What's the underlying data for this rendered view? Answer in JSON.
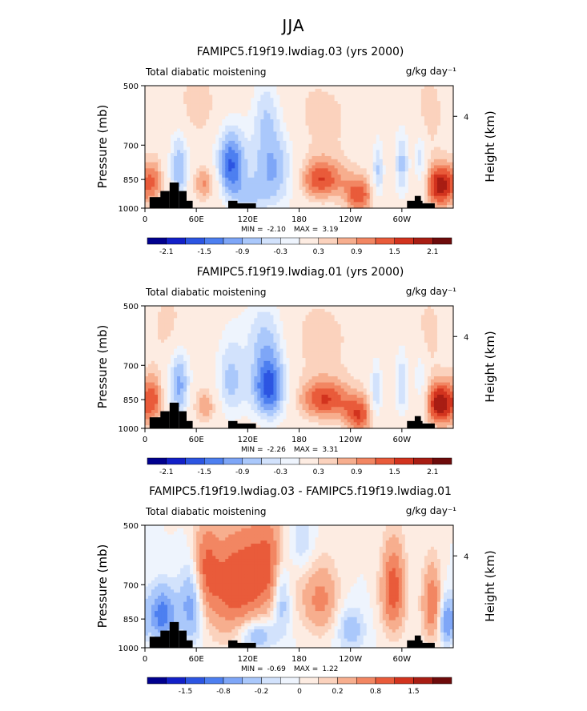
{
  "title": "JJA",
  "colors": {
    "scale": [
      "#00008e",
      "#1220c8",
      "#2c55e2",
      "#4d7ff0",
      "#7ea6f7",
      "#aac8fb",
      "#d2e2fc",
      "#eef4fd",
      "#fdece2",
      "#fbd2bd",
      "#f7ae8e",
      "#f28662",
      "#e95b3a",
      "#d2331e",
      "#a81d13",
      "#6e0b0b"
    ],
    "land": "#000000"
  },
  "chart_data": [
    {
      "type": "heatmap",
      "title": "FAMIPC5.f19f19.lwdiag.03 (yrs 2000)",
      "variable": "Total diabatic moistening",
      "units": "g/kg day⁻¹",
      "ylabel": "Pressure (mb)",
      "y2label": "Height (km)",
      "xticks": [
        "0",
        "60E",
        "120E",
        "180",
        "120W",
        "60W"
      ],
      "yticks": [
        "500",
        "700",
        "850",
        "1000"
      ],
      "y2ticks": [
        "4"
      ],
      "min_label": "MIN =",
      "min": "-2.10",
      "max_label": "MAX =",
      "max": "3.19",
      "colorbar_ticks": [
        "-2.1",
        "-1.5",
        "-0.9",
        "-0.3",
        "0.3",
        "0.9",
        "1.5",
        "2.1"
      ],
      "features": [
        {
          "lon": 100,
          "p": 780,
          "v": -1.8,
          "sl": 12,
          "sp": 110
        },
        {
          "lon": 40,
          "p": 800,
          "v": -1.2,
          "sl": 8,
          "sp": 120
        },
        {
          "lon": 150,
          "p": 800,
          "v": -1.3,
          "sl": 20,
          "sp": 140
        },
        {
          "lon": 142,
          "p": 580,
          "v": -0.7,
          "sl": 12,
          "sp": 90
        },
        {
          "lon": 205,
          "p": 850,
          "v": 1.5,
          "sl": 20,
          "sp": 70
        },
        {
          "lon": 250,
          "p": 930,
          "v": 1.4,
          "sl": 12,
          "sp": 70
        },
        {
          "lon": 345,
          "p": 880,
          "v": 2.0,
          "sl": 12,
          "sp": 80
        },
        {
          "lon": 272,
          "p": 820,
          "v": -1.0,
          "sl": 5,
          "sp": 110
        },
        {
          "lon": 300,
          "p": 780,
          "v": -1.0,
          "sl": 6,
          "sp": 110
        },
        {
          "lon": 322,
          "p": 760,
          "v": -0.8,
          "sl": 5,
          "sp": 110
        },
        {
          "lon": 70,
          "p": 870,
          "v": 1.0,
          "sl": 10,
          "sp": 60
        },
        {
          "lon": 10,
          "p": 860,
          "v": 1.0,
          "sl": 8,
          "sp": 80
        },
        {
          "lon": 120,
          "p": 940,
          "v": -0.6,
          "sl": 15,
          "sp": 60
        },
        {
          "lon": 200,
          "p": 600,
          "v": 0.4,
          "sl": 40,
          "sp": 120
        },
        {
          "lon": 60,
          "p": 560,
          "v": 0.5,
          "sl": 20,
          "sp": 80
        },
        {
          "lon": 330,
          "p": 580,
          "v": 0.6,
          "sl": 12,
          "sp": 80
        }
      ]
    },
    {
      "type": "heatmap",
      "title": "FAMIPC5.f19f19.lwdiag.01 (yrs 2000)",
      "variable": "Total diabatic moistening",
      "units": "g/kg day⁻¹",
      "ylabel": "Pressure (mb)",
      "y2label": "Height (km)",
      "xticks": [
        "0",
        "60E",
        "120E",
        "180",
        "120W",
        "60W"
      ],
      "yticks": [
        "500",
        "700",
        "850",
        "1000"
      ],
      "y2ticks": [
        "4"
      ],
      "min_label": "MIN =",
      "min": "-2.26",
      "max_label": "MAX =",
      "max": "3.31",
      "colorbar_ticks": [
        "-2.1",
        "-1.5",
        "-0.9",
        "-0.3",
        "0.3",
        "0.9",
        "1.5",
        "2.1"
      ],
      "features": [
        {
          "lon": 145,
          "p": 790,
          "v": -2.0,
          "sl": 15,
          "sp": 110
        },
        {
          "lon": 40,
          "p": 780,
          "v": -1.3,
          "sl": 9,
          "sp": 120
        },
        {
          "lon": 100,
          "p": 760,
          "v": -1.0,
          "sl": 12,
          "sp": 130
        },
        {
          "lon": 140,
          "p": 580,
          "v": -0.8,
          "sl": 18,
          "sp": 90
        },
        {
          "lon": 210,
          "p": 850,
          "v": 1.5,
          "sl": 22,
          "sp": 70
        },
        {
          "lon": 250,
          "p": 930,
          "v": 1.4,
          "sl": 12,
          "sp": 70
        },
        {
          "lon": 345,
          "p": 870,
          "v": 2.1,
          "sl": 12,
          "sp": 80
        },
        {
          "lon": 270,
          "p": 820,
          "v": -1.0,
          "sl": 5,
          "sp": 110
        },
        {
          "lon": 300,
          "p": 780,
          "v": -0.9,
          "sl": 6,
          "sp": 110
        },
        {
          "lon": 322,
          "p": 760,
          "v": -0.7,
          "sl": 5,
          "sp": 110
        },
        {
          "lon": 10,
          "p": 850,
          "v": 1.2,
          "sl": 8,
          "sp": 90
        },
        {
          "lon": 70,
          "p": 880,
          "v": 0.9,
          "sl": 10,
          "sp": 60
        },
        {
          "lon": 200,
          "p": 600,
          "v": 0.4,
          "sl": 40,
          "sp": 120
        },
        {
          "lon": 30,
          "p": 560,
          "v": 0.5,
          "sl": 15,
          "sp": 80
        },
        {
          "lon": 330,
          "p": 580,
          "v": 0.5,
          "sl": 12,
          "sp": 80
        }
      ]
    },
    {
      "type": "heatmap",
      "title": "FAMIPC5.f19f19.lwdiag.03 - FAMIPC5.f19f19.lwdiag.01",
      "variable": "Total diabatic moistening",
      "units": "g/kg day⁻¹",
      "ylabel": "Pressure (mb)",
      "y2label": "Height (km)",
      "xticks": [
        "0",
        "60E",
        "120E",
        "180",
        "120W",
        "60W"
      ],
      "yticks": [
        "500",
        "700",
        "850",
        "1000"
      ],
      "y2ticks": [
        "4"
      ],
      "min_label": "MIN =",
      "min": "-0.69",
      "max_label": "MAX =",
      "max": "1.22",
      "colorbar_ticks": [
        "-1.5",
        "-0.8",
        "-0.2",
        "0",
        "0.2",
        "0.8",
        "1.5"
      ],
      "features": [
        {
          "lon": 105,
          "p": 700,
          "v": 0.6,
          "sl": 25,
          "sp": 160
        },
        {
          "lon": 150,
          "p": 620,
          "v": 0.5,
          "sl": 20,
          "sp": 120
        },
        {
          "lon": 160,
          "p": 720,
          "v": -0.5,
          "sl": 8,
          "sp": 120
        },
        {
          "lon": 55,
          "p": 780,
          "v": -0.5,
          "sl": 10,
          "sp": 120
        },
        {
          "lon": 20,
          "p": 830,
          "v": -0.6,
          "sl": 12,
          "sp": 90
        },
        {
          "lon": 70,
          "p": 640,
          "v": 0.4,
          "sl": 10,
          "sp": 120
        },
        {
          "lon": 205,
          "p": 760,
          "v": 0.4,
          "sl": 15,
          "sp": 110
        },
        {
          "lon": 290,
          "p": 720,
          "v": 0.6,
          "sl": 10,
          "sp": 130
        },
        {
          "lon": 335,
          "p": 780,
          "v": 0.5,
          "sl": 8,
          "sp": 120
        },
        {
          "lon": 352,
          "p": 860,
          "v": -0.5,
          "sl": 6,
          "sp": 80
        },
        {
          "lon": 130,
          "p": 930,
          "v": -0.4,
          "sl": 15,
          "sp": 60
        },
        {
          "lon": 240,
          "p": 900,
          "v": -0.3,
          "sl": 12,
          "sp": 80
        },
        {
          "lon": 180,
          "p": 560,
          "v": -0.3,
          "sl": 12,
          "sp": 80
        }
      ]
    }
  ]
}
